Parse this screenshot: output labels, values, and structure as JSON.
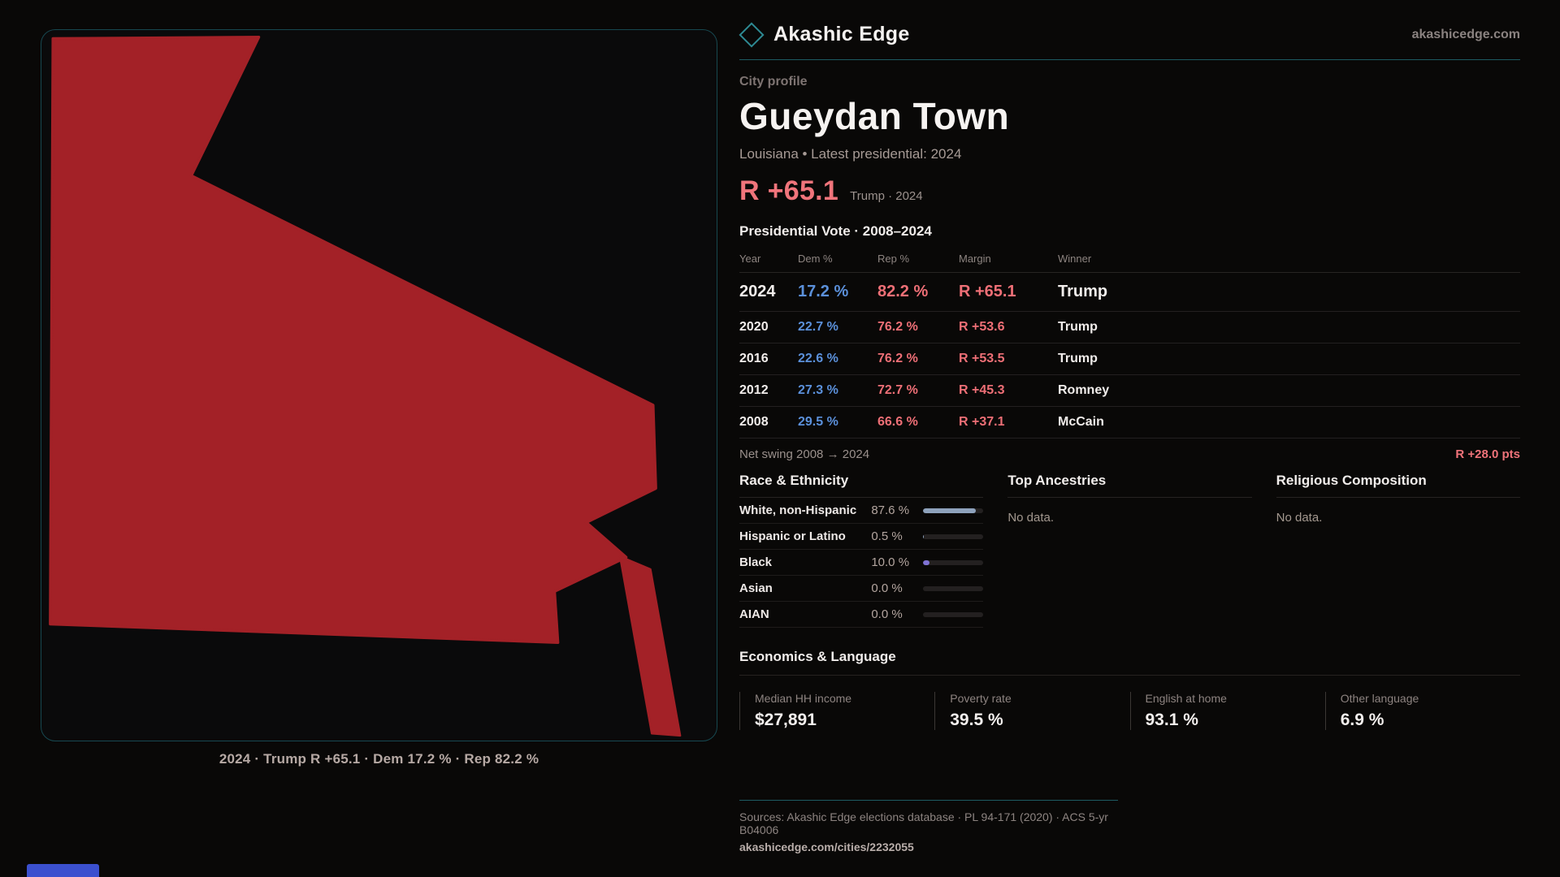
{
  "brand": {
    "name": "Akashic Edge",
    "site": "akashicedge.com"
  },
  "map": {
    "caption": "2024 · Trump R +65.1 · Dem 17.2 % · Rep 82.2 %",
    "fill_color": "#a32127",
    "border_color": "#174850"
  },
  "profile": {
    "kicker": "City profile",
    "title": "Gueydan Town",
    "subtitle": "Louisiana • Latest presidential: 2024",
    "margin_big": "R +65.1",
    "margin_note": "Trump · 2024",
    "table_title": "Presidential Vote · 2008–2024"
  },
  "vote_table": {
    "columns": [
      "Year",
      "Dem %",
      "Rep %",
      "Margin",
      "Winner"
    ],
    "rows": [
      {
        "year": "2024",
        "dem": "17.2 %",
        "rep": "82.2 %",
        "margin": "R +65.1",
        "winner": "Trump"
      },
      {
        "year": "2020",
        "dem": "22.7 %",
        "rep": "76.2 %",
        "margin": "R +53.6",
        "winner": "Trump"
      },
      {
        "year": "2016",
        "dem": "22.6 %",
        "rep": "76.2 %",
        "margin": "R +53.5",
        "winner": "Trump"
      },
      {
        "year": "2012",
        "dem": "27.3 %",
        "rep": "72.7 %",
        "margin": "R +45.3",
        "winner": "Romney"
      },
      {
        "year": "2008",
        "dem": "29.5 %",
        "rep": "66.6 %",
        "margin": "R +37.1",
        "winner": "McCain"
      }
    ]
  },
  "net_swing": {
    "label": "Net swing 2008 → 2024",
    "value": "R +28.0 pts"
  },
  "race": {
    "title": "Race & Ethnicity",
    "rows": [
      {
        "label": "White, non-Hispanic",
        "value": "87.6 %",
        "pct": 87.6,
        "color": "#8ea2bc"
      },
      {
        "label": "Hispanic or Latino",
        "value": "0.5 %",
        "pct": 0.5,
        "color": "#8ea2bc"
      },
      {
        "label": "Black",
        "value": "10.0 %",
        "pct": 10.0,
        "color": "#7f72d4"
      },
      {
        "label": "Asian",
        "value": "0.0 %",
        "pct": 0,
        "color": "#8ea2bc"
      },
      {
        "label": "AIAN",
        "value": "0.0 %",
        "pct": 0,
        "color": "#8ea2bc"
      }
    ]
  },
  "ancestries": {
    "title": "Top Ancestries",
    "empty": "No data."
  },
  "religion": {
    "title": "Religious Composition",
    "empty": "No data."
  },
  "economics": {
    "title": "Economics & Language",
    "stats": [
      {
        "label": "Median HH income",
        "value": "$27,891"
      },
      {
        "label": "Poverty rate",
        "value": "39.5 %"
      },
      {
        "label": "English at home",
        "value": "93.1 %"
      },
      {
        "label": "Other language",
        "value": "6.9 %"
      }
    ]
  },
  "footer": {
    "sources": "Sources: Akashic Edge elections database · PL 94-171 (2020) · ACS 5-yr B04006",
    "link": "akashicedge.com/cities/2232055"
  },
  "chart_data": {
    "type": "table",
    "title": "Presidential Vote · 2008–2024",
    "categories": [
      "2024",
      "2020",
      "2016",
      "2012",
      "2008"
    ],
    "series": [
      {
        "name": "Dem %",
        "values": [
          17.2,
          22.7,
          22.6,
          27.3,
          29.5
        ]
      },
      {
        "name": "Rep %",
        "values": [
          82.2,
          76.2,
          76.2,
          72.7,
          66.6
        ]
      },
      {
        "name": "R margin",
        "values": [
          65.1,
          53.6,
          53.5,
          45.3,
          37.1
        ]
      }
    ],
    "winners": [
      "Trump",
      "Trump",
      "Trump",
      "Romney",
      "McCain"
    ],
    "race_bars": {
      "type": "bar",
      "categories": [
        "White, non-Hispanic",
        "Hispanic or Latino",
        "Black",
        "Asian",
        "AIAN"
      ],
      "values": [
        87.6,
        0.5,
        10.0,
        0.0,
        0.0
      ],
      "xlim": [
        0,
        100
      ]
    }
  }
}
